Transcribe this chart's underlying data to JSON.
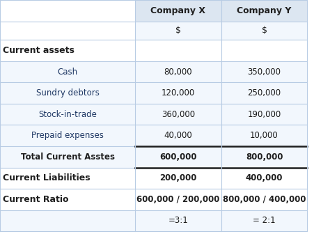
{
  "title": "",
  "columns": [
    "",
    "Company X",
    "Company Y"
  ],
  "subheader": [
    "",
    "$",
    "$"
  ],
  "rows": [
    {
      "label": "Current assets",
      "col1": "",
      "col2": "",
      "style": "bold_left",
      "header": true
    },
    {
      "label": "Cash",
      "col1": "80,000",
      "col2": "350,000",
      "style": "normal_indent"
    },
    {
      "label": "Sundry debtors",
      "col1": "120,000",
      "col2": "250,000",
      "style": "normal_indent"
    },
    {
      "label": "Stock-in-trade",
      "col1": "360,000",
      "col2": "190,000",
      "style": "normal_indent"
    },
    {
      "label": "Prepaid expenses",
      "col1": "40,000",
      "col2": "10,000",
      "style": "normal_indent"
    },
    {
      "label": "Total Current Asstes",
      "col1": "600,000",
      "col2": "800,000",
      "style": "bold_indent",
      "thick_border": true
    },
    {
      "label": "Current Liabilities",
      "col1": "200,000",
      "col2": "400,000",
      "style": "bold_left"
    },
    {
      "label": "Current Ratio",
      "col1": "600,000 / 200,000",
      "col2": "800,000 / 400,000",
      "style": "bold_left"
    },
    {
      "label": "",
      "col1": "=3:1",
      "col2": "= 2:1",
      "style": "normal_indent"
    }
  ],
  "header_bg": "#dce6f1",
  "row_bg_light": "#f2f7fd",
  "grid_color": "#b8cce4",
  "text_color_normal": "#1f3864",
  "text_color_bold": "#1f1f1f",
  "thick_line_color": "#1f1f1f",
  "bg_color": "#ffffff"
}
